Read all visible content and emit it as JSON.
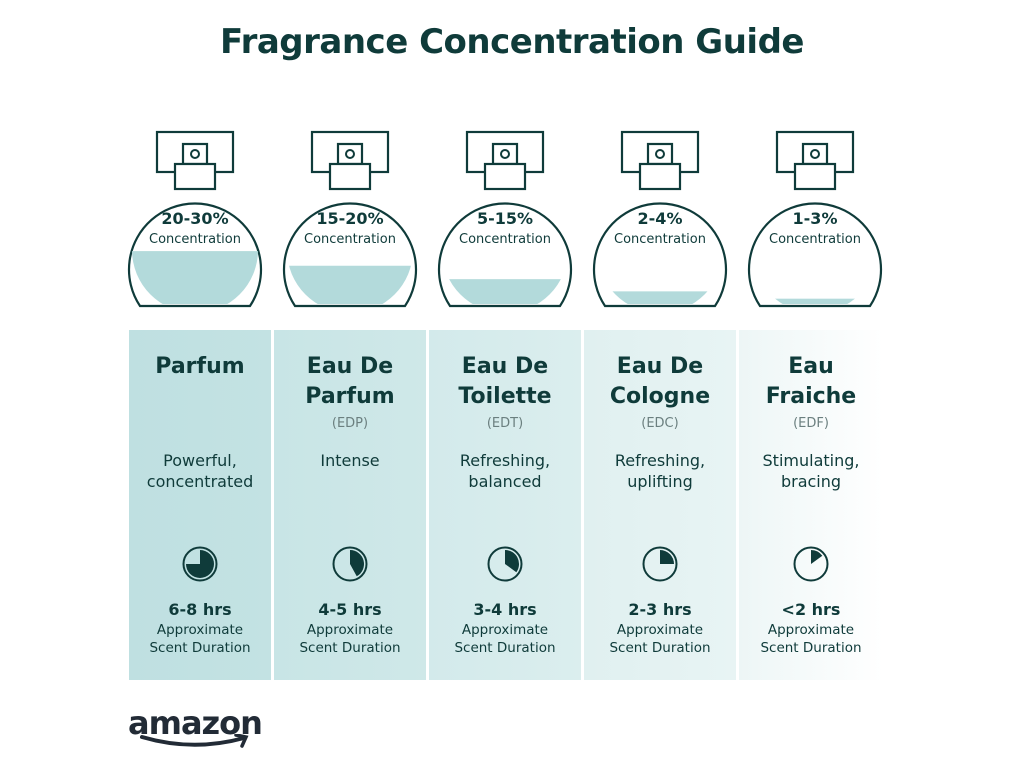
{
  "title": "Fragrance Concentration Guide",
  "colors": {
    "dark": "#0f3b3a",
    "liquid": "#b3dadb",
    "panel": "#c3e2e3"
  },
  "types": [
    {
      "percent": "20-30%",
      "concentration_label": "Concentration",
      "fill_level": 0.45,
      "name_lines": [
        "Parfum"
      ],
      "abbr": "",
      "desc_lines": [
        "Powerful,",
        "concentrated"
      ],
      "duration_fraction": 0.75,
      "hours": "6-8 hrs",
      "duration_lines": [
        "Approximate",
        "Scent Duration"
      ]
    },
    {
      "percent": "15-20%",
      "concentration_label": "Concentration",
      "fill_level": 0.33,
      "name_lines": [
        "Eau De",
        "Parfum"
      ],
      "abbr": "(EDP)",
      "desc_lines": [
        "Intense"
      ],
      "duration_fraction": 0.42,
      "hours": "4-5 hrs",
      "duration_lines": [
        "Approximate",
        "Scent Duration"
      ]
    },
    {
      "percent": "5-15%",
      "concentration_label": "Concentration",
      "fill_level": 0.22,
      "name_lines": [
        "Eau De",
        "Toilette"
      ],
      "abbr": "(EDT)",
      "desc_lines": [
        "Refreshing,",
        "balanced"
      ],
      "duration_fraction": 0.35,
      "hours": "3-4 hrs",
      "duration_lines": [
        "Approximate",
        "Scent Duration"
      ]
    },
    {
      "percent": "2-4%",
      "concentration_label": "Concentration",
      "fill_level": 0.12,
      "name_lines": [
        "Eau De",
        "Cologne"
      ],
      "abbr": "(EDC)",
      "desc_lines": [
        "Refreshing,",
        "uplifting"
      ],
      "duration_fraction": 0.25,
      "hours": "2-3 hrs",
      "duration_lines": [
        "Approximate",
        "Scent Duration"
      ]
    },
    {
      "percent": "1-3%",
      "concentration_label": "Concentration",
      "fill_level": 0.06,
      "name_lines": [
        "Eau",
        "Fraiche"
      ],
      "abbr": "(EDF)",
      "desc_lines": [
        "Stimulating,",
        "bracing"
      ],
      "duration_fraction": 0.15,
      "hours": "<2 hrs",
      "duration_lines": [
        "Approximate",
        "Scent Duration"
      ]
    }
  ],
  "logo": {
    "text": "amazon"
  }
}
